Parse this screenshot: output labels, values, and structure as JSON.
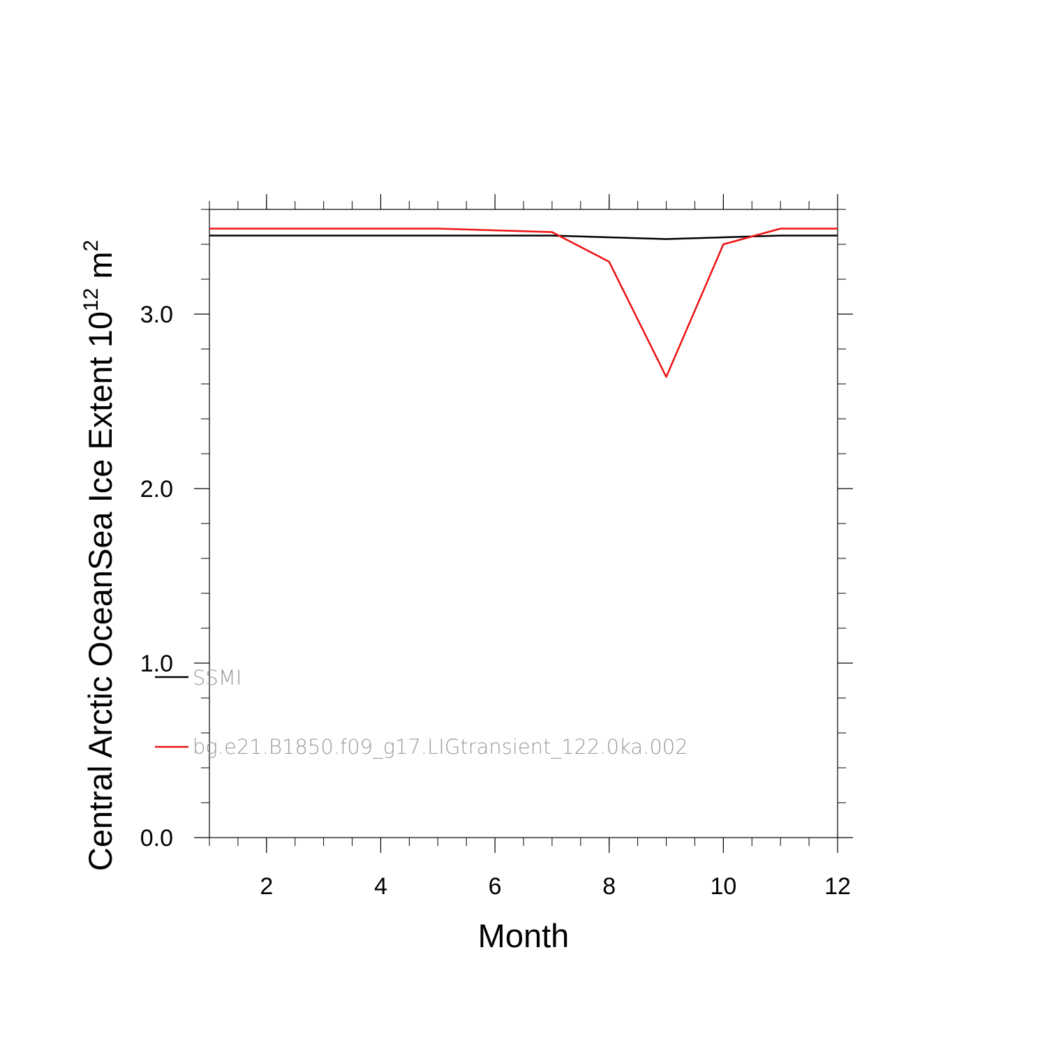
{
  "chart_data": {
    "type": "line",
    "xlabel": "Month",
    "ylabel_main": "Central Arctic OceanSea Ice Extent 10",
    "ylabel_exp": "12",
    "ylabel_unit": " m",
    "ylabel_unit_exp": "2",
    "xlim": [
      1,
      12
    ],
    "ylim": [
      0,
      3.6
    ],
    "x_ticks": [
      2,
      4,
      6,
      8,
      10,
      12
    ],
    "x_tick_labels": [
      "2",
      "4",
      "6",
      "8",
      "10",
      "12"
    ],
    "y_ticks": [
      0.0,
      1.0,
      2.0,
      3.0
    ],
    "y_tick_labels": [
      "0.0",
      "1.0",
      "2.0",
      "3.0"
    ],
    "x": [
      1,
      2,
      3,
      4,
      5,
      6,
      7,
      8,
      9,
      10,
      11,
      12
    ],
    "series": [
      {
        "name": "SSMI",
        "color": "#000000",
        "values": [
          3.45,
          3.45,
          3.45,
          3.45,
          3.45,
          3.45,
          3.45,
          3.44,
          3.43,
          3.44,
          3.45,
          3.45
        ]
      },
      {
        "name": "bg.e21.B1850.f09_g17.LIGtransient_122.0ka.002",
        "color": "#ee1111",
        "values": [
          3.49,
          3.49,
          3.49,
          3.49,
          3.49,
          3.48,
          3.47,
          3.3,
          2.64,
          3.4,
          3.49,
          3.49
        ]
      }
    ],
    "legend_position": "bottom-left inside"
  }
}
